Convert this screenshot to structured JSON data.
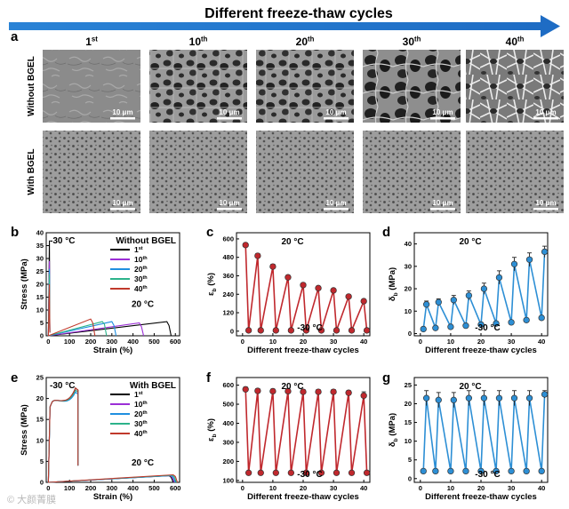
{
  "figure": {
    "banner_title": "Different freeze-thaw cycles",
    "panel_letters": [
      "a",
      "b",
      "c",
      "d",
      "e",
      "f",
      "g"
    ],
    "sem": {
      "column_headers": [
        {
          "num": "1",
          "sup": "st"
        },
        {
          "num": "10",
          "sup": "th"
        },
        {
          "num": "20",
          "sup": "th"
        },
        {
          "num": "30",
          "sup": "th"
        },
        {
          "num": "40",
          "sup": "th"
        }
      ],
      "row_labels": [
        "Without BGEL",
        "With BGEL"
      ],
      "scale_bar_label": "10 μm"
    },
    "watermark": "© 大颜菁膜"
  },
  "chart_data": [
    {
      "panel": "b",
      "type": "line",
      "title": "Without BGEL",
      "xlabel": "Strain (%)",
      "ylabel": "Stress (MPa)",
      "xlim": [
        -10,
        620
      ],
      "ylim": [
        0,
        40
      ],
      "xticks": [
        0,
        100,
        200,
        300,
        400,
        500,
        600
      ],
      "yticks": [
        0,
        5,
        10,
        15,
        20,
        25,
        30,
        35,
        40
      ],
      "annotations": [
        "-30 °C",
        "20 °C"
      ],
      "legend": {
        "position": "top-right",
        "entries": [
          {
            "num": "1",
            "sup": "st",
            "color": "#000000"
          },
          {
            "num": "10",
            "sup": "th",
            "color": "#9b2fd6"
          },
          {
            "num": "20",
            "sup": "th",
            "color": "#1f8fe0"
          },
          {
            "num": "30",
            "sup": "th",
            "color": "#2cb38a"
          },
          {
            "num": "40",
            "sup": "th",
            "color": "#c0392b"
          }
        ]
      },
      "series": [
        {
          "name": "1st",
          "color": "#000000",
          "cold_peak": [
            5,
            37
          ],
          "x": [
            0,
            560,
            570,
            580
          ],
          "y": [
            0,
            5.5,
            4,
            0
          ]
        },
        {
          "name": "10th",
          "color": "#9b2fd6",
          "cold_peak": [
            5,
            29
          ],
          "x": [
            0,
            430,
            440,
            450
          ],
          "y": [
            0,
            5,
            3.5,
            0
          ]
        },
        {
          "name": "20th",
          "color": "#1f8fe0",
          "cold_peak": [
            5,
            26
          ],
          "x": [
            0,
            300,
            310,
            320
          ],
          "y": [
            0,
            5.5,
            4,
            0
          ]
        },
        {
          "name": "30th",
          "color": "#2cb38a",
          "cold_peak": [
            5,
            24
          ],
          "x": [
            0,
            255,
            265,
            275
          ],
          "y": [
            0,
            5.5,
            4.5,
            0
          ]
        },
        {
          "name": "40th",
          "color": "#c0392b",
          "cold_peak": [
            5,
            20
          ],
          "x": [
            0,
            200,
            210,
            220
          ],
          "y": [
            0,
            6.5,
            5,
            0
          ]
        }
      ]
    },
    {
      "panel": "c",
      "type": "scatter",
      "xlabel": "Different freeze-thaw cycles",
      "ylabel": "ε_b (%)",
      "xlim": [
        -2,
        42
      ],
      "ylim": [
        -30,
        640
      ],
      "xticks": [
        0,
        10,
        20,
        30,
        40
      ],
      "yticks": [
        0,
        120,
        240,
        360,
        480,
        600
      ],
      "annotations": [
        "20 °C",
        "-30 °C"
      ],
      "color": "#c0282d",
      "x": [
        1,
        2,
        5,
        6,
        10,
        11,
        15,
        16,
        20,
        21,
        25,
        26,
        30,
        31,
        35,
        36,
        40,
        41
      ],
      "values": [
        560,
        5,
        490,
        5,
        420,
        5,
        350,
        5,
        300,
        5,
        280,
        5,
        265,
        5,
        225,
        5,
        195,
        5
      ],
      "errors": [
        12,
        0,
        15,
        0,
        15,
        0,
        14,
        0,
        12,
        0,
        12,
        0,
        12,
        0,
        12,
        0,
        12,
        0
      ]
    },
    {
      "panel": "d",
      "type": "scatter",
      "xlabel": "Different freeze-thaw cycles",
      "ylabel": "δ_b (MPa)",
      "xlim": [
        -2,
        42
      ],
      "ylim": [
        -1,
        45
      ],
      "xticks": [
        0,
        10,
        20,
        30,
        40
      ],
      "yticks": [
        0,
        10,
        20,
        30,
        40
      ],
      "annotations": [
        "20 °C",
        "-30 °C"
      ],
      "color": "#2d8fd5",
      "x": [
        1,
        2,
        5,
        6,
        10,
        11,
        15,
        16,
        20,
        21,
        25,
        26,
        30,
        31,
        35,
        36,
        40,
        41
      ],
      "values": [
        2,
        13,
        2.5,
        14,
        3,
        15,
        3.5,
        17,
        4,
        20,
        4.5,
        25,
        5,
        31,
        6,
        33,
        7,
        36.5
      ],
      "errors": [
        0,
        1.5,
        0,
        1.5,
        0,
        2,
        0,
        2,
        0,
        2.5,
        0,
        3,
        0,
        3,
        0,
        3,
        0,
        2.5
      ]
    },
    {
      "panel": "e",
      "type": "line",
      "title": "With BGEL",
      "xlabel": "Strain (%)",
      "ylabel": "Stress (MPa)",
      "xlim": [
        -10,
        620
      ],
      "ylim": [
        0,
        25
      ],
      "xticks": [
        0,
        100,
        200,
        300,
        400,
        500,
        600
      ],
      "yticks": [
        0,
        5,
        10,
        15,
        20,
        25
      ],
      "annotations": [
        "-30 °C",
        "20 °C"
      ],
      "legend": {
        "position": "top-right",
        "entries": [
          {
            "num": "1",
            "sup": "st",
            "color": "#000000"
          },
          {
            "num": "10",
            "sup": "th",
            "color": "#9b2fd6"
          },
          {
            "num": "20",
            "sup": "th",
            "color": "#1f8fe0"
          },
          {
            "num": "30",
            "sup": "th",
            "color": "#2cb38a"
          },
          {
            "num": "40",
            "sup": "th",
            "color": "#c0392b"
          }
        ]
      },
      "series": [
        {
          "name": "1st",
          "color": "#000000",
          "cold_end": [
            140,
            22.5
          ],
          "x": [
            0,
            570,
            580,
            590
          ],
          "y": [
            0,
            1.6,
            1.2,
            0
          ]
        },
        {
          "name": "10th",
          "color": "#9b2fd6",
          "cold_end": [
            140,
            22
          ],
          "x": [
            0,
            575,
            585,
            595
          ],
          "y": [
            0,
            1.6,
            1.2,
            0
          ]
        },
        {
          "name": "20th",
          "color": "#1f8fe0",
          "cold_end": [
            140,
            21.5
          ],
          "x": [
            0,
            580,
            590,
            600
          ],
          "y": [
            0,
            1.6,
            1.2,
            0
          ]
        },
        {
          "name": "30th",
          "color": "#2cb38a",
          "cold_end": [
            140,
            22
          ],
          "x": [
            0,
            585,
            595,
            605
          ],
          "y": [
            0,
            1.7,
            1.3,
            0
          ]
        },
        {
          "name": "40th",
          "color": "#c0392b",
          "cold_end": [
            140,
            22.5
          ],
          "x": [
            0,
            590,
            600,
            610
          ],
          "y": [
            0,
            1.8,
            1.4,
            0
          ]
        }
      ]
    },
    {
      "panel": "f",
      "type": "scatter",
      "xlabel": "Different freeze-thaw cycles",
      "ylabel": "ε_b (%)",
      "xlim": [
        -2,
        42
      ],
      "ylim": [
        90,
        640
      ],
      "xticks": [
        0,
        10,
        20,
        30,
        40
      ],
      "yticks": [
        100,
        200,
        300,
        400,
        500,
        600
      ],
      "annotations": [
        "20 °C",
        "-30 °C"
      ],
      "color": "#c0282d",
      "x": [
        1,
        2,
        5,
        6,
        10,
        11,
        15,
        16,
        20,
        21,
        25,
        26,
        30,
        31,
        35,
        36,
        40,
        41
      ],
      "values": [
        578,
        140,
        570,
        140,
        568,
        140,
        568,
        140,
        565,
        140,
        565,
        140,
        565,
        140,
        560,
        140,
        545,
        140
      ],
      "errors": [
        12,
        0,
        12,
        0,
        12,
        0,
        12,
        0,
        12,
        0,
        12,
        0,
        12,
        0,
        12,
        0,
        20,
        0
      ]
    },
    {
      "panel": "g",
      "type": "scatter",
      "xlabel": "Different freeze-thaw cycles",
      "ylabel": "δ_b (MPa)",
      "xlim": [
        -2,
        42
      ],
      "ylim": [
        -1,
        27
      ],
      "xticks": [
        0,
        10,
        20,
        30,
        40
      ],
      "yticks": [
        0,
        5,
        10,
        15,
        20,
        25
      ],
      "annotations": [
        "20 °C",
        "-30 °C"
      ],
      "color": "#2d8fd5",
      "x": [
        1,
        2,
        5,
        6,
        10,
        11,
        15,
        16,
        20,
        21,
        25,
        26,
        30,
        31,
        35,
        36,
        40,
        41
      ],
      "values": [
        2,
        21.5,
        2,
        21,
        2,
        21,
        2,
        21.5,
        2,
        21.5,
        2,
        21.5,
        2,
        21.5,
        2,
        21.5,
        2,
        22.5
      ],
      "errors": [
        0,
        2,
        0,
        2,
        0,
        2,
        0,
        2,
        0,
        2,
        0,
        2,
        0,
        2,
        0,
        2,
        0,
        1
      ]
    }
  ]
}
